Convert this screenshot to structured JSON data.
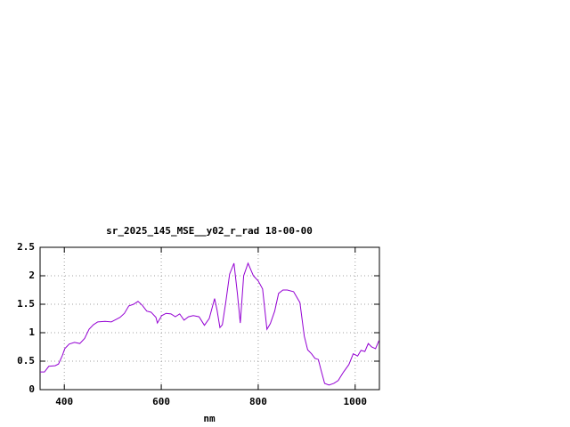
{
  "chart_data": {
    "type": "line",
    "title": "sr_2025_145_MSE__y02_r_rad 18-00-00",
    "x_label": "nm",
    "x": [
      350,
      359,
      368,
      381,
      388,
      396,
      401,
      410,
      421,
      432,
      442,
      451,
      460,
      469,
      484,
      497,
      506,
      515,
      524,
      533,
      543,
      552,
      561,
      570,
      579,
      589,
      592,
      601,
      610,
      620,
      629,
      638,
      647,
      656,
      666,
      678,
      689,
      699,
      710,
      715,
      721,
      726,
      733,
      741,
      750,
      757,
      763,
      770,
      779,
      790,
      800,
      809,
      818,
      825,
      834,
      842,
      851,
      860,
      873,
      886,
      895,
      902,
      910,
      917,
      924,
      930,
      937,
      946,
      956,
      965,
      976,
      987,
      996,
      1005,
      1012,
      1020,
      1027,
      1034,
      1042,
      1049
    ],
    "values": [
      0.31,
      0.31,
      0.41,
      0.42,
      0.45,
      0.6,
      0.72,
      0.8,
      0.83,
      0.81,
      0.9,
      1.06,
      1.14,
      1.19,
      1.2,
      1.19,
      1.23,
      1.27,
      1.34,
      1.47,
      1.5,
      1.55,
      1.48,
      1.38,
      1.36,
      1.27,
      1.17,
      1.3,
      1.34,
      1.33,
      1.28,
      1.33,
      1.22,
      1.28,
      1.3,
      1.28,
      1.13,
      1.25,
      1.6,
      1.4,
      1.09,
      1.14,
      1.53,
      2.03,
      2.22,
      1.69,
      1.17,
      2.0,
      2.22,
      2.0,
      1.91,
      1.77,
      1.06,
      1.16,
      1.38,
      1.69,
      1.75,
      1.75,
      1.72,
      1.53,
      0.94,
      0.7,
      0.63,
      0.55,
      0.53,
      0.33,
      0.11,
      0.08,
      0.11,
      0.16,
      0.31,
      0.44,
      0.63,
      0.59,
      0.69,
      0.67,
      0.81,
      0.75,
      0.72,
      0.86
    ],
    "color": "#9400d3",
    "xlim": [
      350,
      1050
    ],
    "xticks": [
      400,
      600,
      800,
      1000
    ],
    "ylim": [
      0,
      2.5
    ],
    "yticks": [
      0,
      0.5,
      1,
      1.5,
      2,
      2.5
    ],
    "grid": true
  }
}
